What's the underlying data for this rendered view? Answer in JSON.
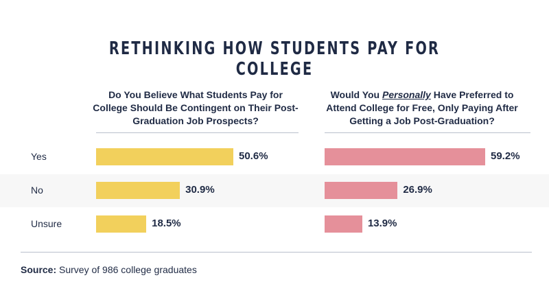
{
  "title": "RETHINKING HOW STUDENTS PAY FOR COLLEGE",
  "source": {
    "label": "Source:",
    "text": "Survey of 986 college graduates"
  },
  "colors": {
    "left": "#f2d05c",
    "right": "#e5909a"
  },
  "chart_data": [
    {
      "type": "bar",
      "question": "Do You Believe What Students Pay for College Should Be Contingent on Their Post-Graduation Job Prospects?",
      "categories": [
        "Yes",
        "No",
        "Unsure"
      ],
      "values": [
        50.6,
        30.9,
        18.5
      ],
      "value_labels": [
        "50.6%",
        "30.9%",
        "18.5%"
      ],
      "orientation": "horizontal"
    },
    {
      "type": "bar",
      "question_parts": [
        "Would You ",
        "Personally",
        " Have Preferred to Attend College for Free, Only Paying After Getting a Job Post-Graduation?"
      ],
      "categories": [
        "Yes",
        "No",
        "Unsure"
      ],
      "values": [
        59.2,
        26.9,
        13.9
      ],
      "value_labels": [
        "59.2%",
        "26.9%",
        "13.9%"
      ],
      "orientation": "horizontal"
    }
  ]
}
